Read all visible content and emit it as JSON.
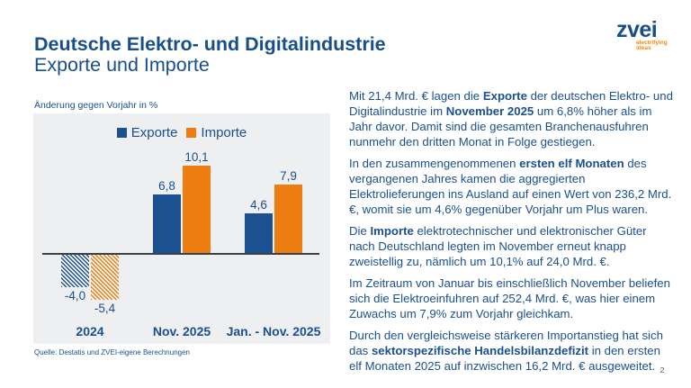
{
  "header": {
    "title": "Deutsche Elektro- und Digitalindustrie",
    "subtitle": "Exporte und Importe"
  },
  "logo": {
    "brand": "zvei",
    "tagline_line1": "electrifying",
    "tagline_line2": "ideas",
    "brand_color": "#174e8c",
    "tagline_color": "#f18a00"
  },
  "chart": {
    "axis_note": "Änderung gegen Vorjahr in %",
    "source": "Quelle: Destatis und ZVEI-eigene Berechnungen"
  },
  "chart_data": {
    "type": "bar",
    "categories": [
      "2024",
      "Nov. 2025",
      "Jan. - Nov. 2025"
    ],
    "series": [
      {
        "name": "Exporte",
        "color": "#1b5191",
        "values": [
          -4.0,
          6.8,
          4.6
        ],
        "labels": [
          "-4,0",
          "6,8",
          "4,6"
        ]
      },
      {
        "name": "Importe",
        "color": "#ee7d11",
        "values": [
          -5.4,
          10.1,
          7.9
        ],
        "labels": [
          "-5,4",
          "10,1",
          "7,9"
        ]
      }
    ],
    "hatched_categories": [
      "2024"
    ],
    "title": "",
    "xlabel": "",
    "ylabel": "Änderung gegen Vorjahr in %",
    "ylim": [
      -7,
      12
    ],
    "grid": false,
    "legend_position": "top-center",
    "panel_background": "#edeff0"
  },
  "commentary": {
    "paragraphs": [
      [
        [
          {
            "t": "Mit 21,4 Mrd. € lagen die "
          },
          {
            "t": "Exporte",
            "b": true
          },
          {
            "t": " der deutschen Elektro- und"
          }
        ],
        [
          {
            "t": "Digitalindustrie im "
          },
          {
            "t": "November 2025",
            "b": true
          },
          {
            "t": " um 6,8% höher als im"
          }
        ],
        [
          {
            "t": "Jahr davor. Damit sind die gesamten Branchenausfuhren"
          }
        ],
        [
          {
            "t": "nunmehr den dritten Monat in Folge gestiegen."
          }
        ]
      ],
      [
        [
          {
            "t": "In den zusammengenommenen "
          },
          {
            "t": "ersten elf Monaten",
            "b": true
          },
          {
            "t": " des"
          }
        ],
        [
          {
            "t": "vergangenen Jahres kamen die aggregierten"
          }
        ],
        [
          {
            "t": "Elektrolieferungen ins Ausland auf einen Wert von 236,2 Mrd."
          }
        ],
        [
          {
            "t": "€, womit sie um 4,6% gegenüber Vorjahr um Plus waren."
          }
        ]
      ],
      [
        [
          {
            "t": "Die "
          },
          {
            "t": "Importe",
            "b": true
          },
          {
            "t": " elektrotechnischer und elektronischer Güter"
          }
        ],
        [
          {
            "t": "nach Deutschland legten im November erneut knapp"
          }
        ],
        [
          {
            "t": "zweistellig zu, nämlich um 10,1% auf 24,0 Mrd. €."
          }
        ]
      ],
      [
        [
          {
            "t": "Im Zeitraum von Januar bis einschließlich November beliefen"
          }
        ],
        [
          {
            "t": "sich die Elektroeinfuhren auf 252,4 Mrd. €, was hier einem"
          }
        ],
        [
          {
            "t": "Zuwachs um 7,9% zum Vorjahr gleichkam."
          }
        ]
      ],
      [
        [
          {
            "t": "Durch den vergleichsweise stärkeren Importanstieg hat sich"
          }
        ],
        [
          {
            "t": "das "
          },
          {
            "t": "sektorspezifische Handelsbilanzdefizit",
            "b": true
          },
          {
            "t": " in den ersten"
          }
        ],
        [
          {
            "t": "elf Monaten 2025 auf inzwischen 16,2 Mrd. € ausgeweitet."
          }
        ]
      ]
    ]
  },
  "footer": {
    "page_number": "2"
  }
}
